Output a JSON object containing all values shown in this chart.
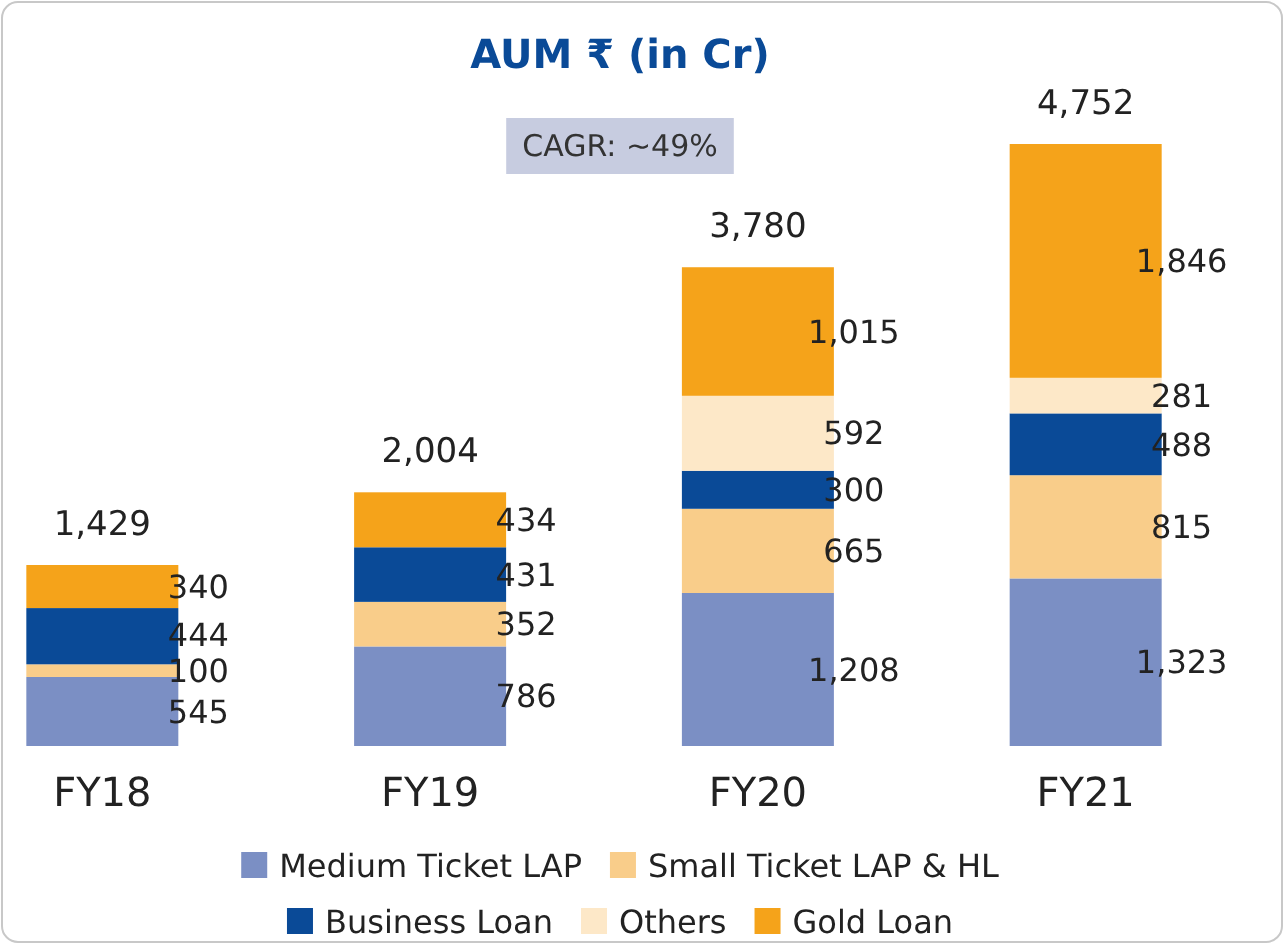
{
  "chart_data": {
    "type": "bar",
    "title": "AUM ₹ (in Cr)",
    "subtitle": "CAGR: ~49%",
    "categories": [
      "FY18",
      "FY19",
      "FY20",
      "FY21"
    ],
    "stacked": true,
    "legend": "bottom",
    "totals": [
      "1,429",
      "2,004",
      "3,780",
      "4,752"
    ],
    "series": [
      {
        "name": "Medium Ticket LAP",
        "color": "#7b8fc4",
        "values": [
          545,
          786,
          1208,
          1323
        ],
        "value_labels": [
          "545",
          "786",
          "1,208",
          "1,323"
        ]
      },
      {
        "name": "Small Ticket LAP & HL",
        "color": "#f9cd8a",
        "values": [
          100,
          352,
          665,
          815
        ],
        "value_labels": [
          "100",
          "352",
          "665",
          "815"
        ]
      },
      {
        "name": "Business Loan",
        "color": "#0a4a97",
        "values": [
          444,
          431,
          300,
          488
        ],
        "value_labels": [
          "444",
          "431",
          "300",
          "488"
        ]
      },
      {
        "name": "Others",
        "color": "#fde8c8",
        "values": [
          null,
          null,
          592,
          281
        ],
        "value_labels": [
          null,
          null,
          "592",
          "281"
        ]
      },
      {
        "name": "Gold Loan",
        "color": "#f5a31a",
        "values": [
          340,
          434,
          1015,
          1846
        ],
        "value_labels": [
          "340",
          "434",
          "1,015",
          "1,846"
        ]
      }
    ]
  }
}
